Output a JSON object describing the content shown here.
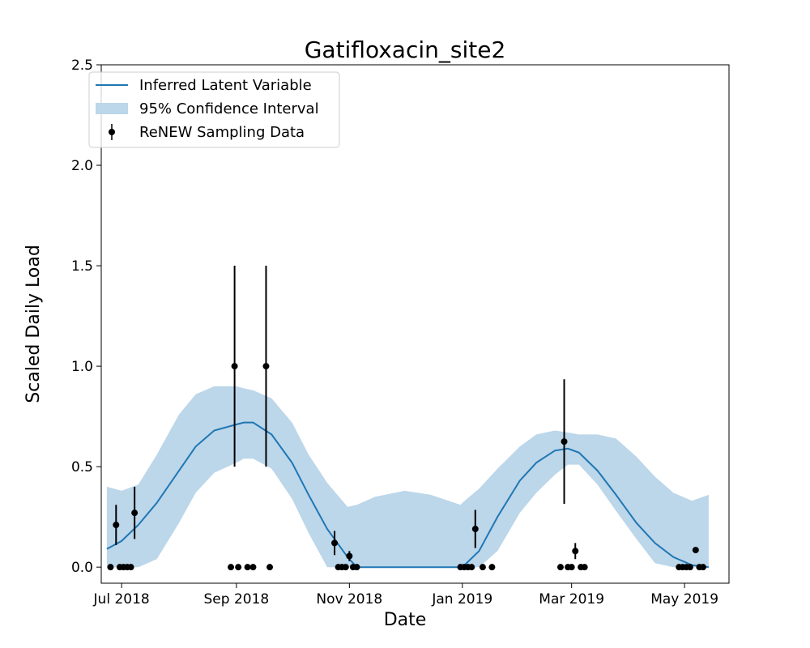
{
  "chart_data": {
    "type": "line",
    "title": "Gatifloxacin_site2",
    "xlabel": "Date",
    "ylabel": "Scaled Daily Load",
    "xlim": [
      "2018-06-20",
      "2019-05-25"
    ],
    "ylim": [
      -0.08,
      2.5
    ],
    "x_ticks": [
      {
        "date": "2018-07-01",
        "label": "Jul 2018"
      },
      {
        "date": "2018-09-01",
        "label": "Sep 2018"
      },
      {
        "date": "2018-11-01",
        "label": "Nov 2018"
      },
      {
        "date": "2019-01-01",
        "label": "Jan 2019"
      },
      {
        "date": "2019-03-01",
        "label": "Mar 2019"
      },
      {
        "date": "2019-05-01",
        "label": "May 2019"
      }
    ],
    "y_ticks": [
      {
        "value": 0.0,
        "label": "0.0"
      },
      {
        "value": 0.5,
        "label": "0.5"
      },
      {
        "value": 1.0,
        "label": "1.0"
      },
      {
        "value": 1.5,
        "label": "1.5"
      },
      {
        "value": 2.0,
        "label": "2.0"
      },
      {
        "value": 2.5,
        "label": "2.5"
      }
    ],
    "legend": {
      "placement": "upper-left",
      "entries": [
        {
          "label": "Inferred Latent Variable",
          "kind": "line"
        },
        {
          "label": "95% Confidence Interval",
          "kind": "band"
        },
        {
          "label": "ReNEW Sampling Data",
          "kind": "errorbar"
        }
      ]
    },
    "colors": {
      "line": "#1f77b4",
      "band": "#bcd6ea",
      "points": "#000000"
    },
    "latent": {
      "x": [
        "2018-06-23",
        "2018-07-01",
        "2018-07-10",
        "2018-07-20",
        "2018-08-01",
        "2018-08-10",
        "2018-08-20",
        "2018-09-01",
        "2018-09-05",
        "2018-09-10",
        "2018-09-20",
        "2018-10-01",
        "2018-10-10",
        "2018-10-20",
        "2018-10-31",
        "2018-11-05",
        "2018-11-15",
        "2018-12-01",
        "2018-12-15",
        "2018-12-31",
        "2019-01-01",
        "2019-01-10",
        "2019-01-20",
        "2019-02-01",
        "2019-02-10",
        "2019-02-20",
        "2019-02-27",
        "2019-03-05",
        "2019-03-15",
        "2019-03-25",
        "2019-04-05",
        "2019-04-15",
        "2019-04-25",
        "2019-05-05",
        "2019-05-14"
      ],
      "y": [
        0.09,
        0.13,
        0.21,
        0.32,
        0.48,
        0.6,
        0.68,
        0.71,
        0.72,
        0.72,
        0.66,
        0.52,
        0.36,
        0.19,
        0.05,
        0.0,
        0.0,
        0.0,
        0.0,
        0.0,
        0.0,
        0.08,
        0.25,
        0.43,
        0.52,
        0.58,
        0.59,
        0.57,
        0.48,
        0.36,
        0.22,
        0.12,
        0.05,
        0.01,
        0.0
      ],
      "lower": [
        0.0,
        0.0,
        0.0,
        0.04,
        0.22,
        0.37,
        0.47,
        0.52,
        0.54,
        0.54,
        0.49,
        0.34,
        0.17,
        0.0,
        0.0,
        0.0,
        0.0,
        0.0,
        0.0,
        0.0,
        0.0,
        0.0,
        0.08,
        0.27,
        0.37,
        0.46,
        0.51,
        0.51,
        0.41,
        0.28,
        0.14,
        0.02,
        0.0,
        0.0,
        0.0
      ],
      "upper": [
        0.4,
        0.38,
        0.41,
        0.56,
        0.76,
        0.86,
        0.9,
        0.9,
        0.89,
        0.88,
        0.84,
        0.72,
        0.56,
        0.42,
        0.3,
        0.31,
        0.35,
        0.38,
        0.36,
        0.31,
        0.32,
        0.39,
        0.49,
        0.6,
        0.66,
        0.68,
        0.67,
        0.66,
        0.66,
        0.64,
        0.55,
        0.45,
        0.37,
        0.33,
        0.36
      ]
    },
    "samples": [
      {
        "x": "2018-06-25",
        "y": 0.0
      },
      {
        "x": "2018-06-28",
        "y": 0.21,
        "err": 0.1
      },
      {
        "x": "2018-06-30",
        "y": 0.0
      },
      {
        "x": "2018-07-02",
        "y": 0.0
      },
      {
        "x": "2018-07-04",
        "y": 0.0
      },
      {
        "x": "2018-07-06",
        "y": 0.0
      },
      {
        "x": "2018-07-08",
        "y": 0.27,
        "err": 0.13
      },
      {
        "x": "2018-08-29",
        "y": 0.0
      },
      {
        "x": "2018-08-31",
        "y": 1.0,
        "err": 0.5
      },
      {
        "x": "2018-09-02",
        "y": 0.0
      },
      {
        "x": "2018-09-07",
        "y": 0.0
      },
      {
        "x": "2018-09-10",
        "y": 0.0
      },
      {
        "x": "2018-09-17",
        "y": 1.0,
        "err": 0.5
      },
      {
        "x": "2018-09-19",
        "y": 0.0
      },
      {
        "x": "2018-10-24",
        "y": 0.12,
        "err": 0.06
      },
      {
        "x": "2018-10-26",
        "y": 0.0
      },
      {
        "x": "2018-10-28",
        "y": 0.0
      },
      {
        "x": "2018-10-30",
        "y": 0.0
      },
      {
        "x": "2018-11-01",
        "y": 0.055,
        "err": 0.025
      },
      {
        "x": "2018-11-03",
        "y": 0.0
      },
      {
        "x": "2018-11-05",
        "y": 0.0
      },
      {
        "x": "2018-12-31",
        "y": 0.0
      },
      {
        "x": "2019-01-02",
        "y": 0.0
      },
      {
        "x": "2019-01-04",
        "y": 0.0
      },
      {
        "x": "2019-01-06",
        "y": 0.0
      },
      {
        "x": "2019-01-08",
        "y": 0.19,
        "err": 0.095
      },
      {
        "x": "2019-01-12",
        "y": 0.0
      },
      {
        "x": "2019-01-17",
        "y": 0.0
      },
      {
        "x": "2019-02-23",
        "y": 0.0
      },
      {
        "x": "2019-02-25",
        "y": 0.625,
        "err": 0.31
      },
      {
        "x": "2019-02-27",
        "y": 0.0
      },
      {
        "x": "2019-03-01",
        "y": 0.0
      },
      {
        "x": "2019-03-03",
        "y": 0.08,
        "err": 0.04
      },
      {
        "x": "2019-03-06",
        "y": 0.0
      },
      {
        "x": "2019-03-08",
        "y": 0.0
      },
      {
        "x": "2019-04-28",
        "y": 0.0
      },
      {
        "x": "2019-04-30",
        "y": 0.0
      },
      {
        "x": "2019-05-02",
        "y": 0.0
      },
      {
        "x": "2019-05-04",
        "y": 0.0
      },
      {
        "x": "2019-05-07",
        "y": 0.085,
        "err": 0.01
      },
      {
        "x": "2019-05-09",
        "y": 0.0
      },
      {
        "x": "2019-05-11",
        "y": 0.0
      }
    ]
  }
}
